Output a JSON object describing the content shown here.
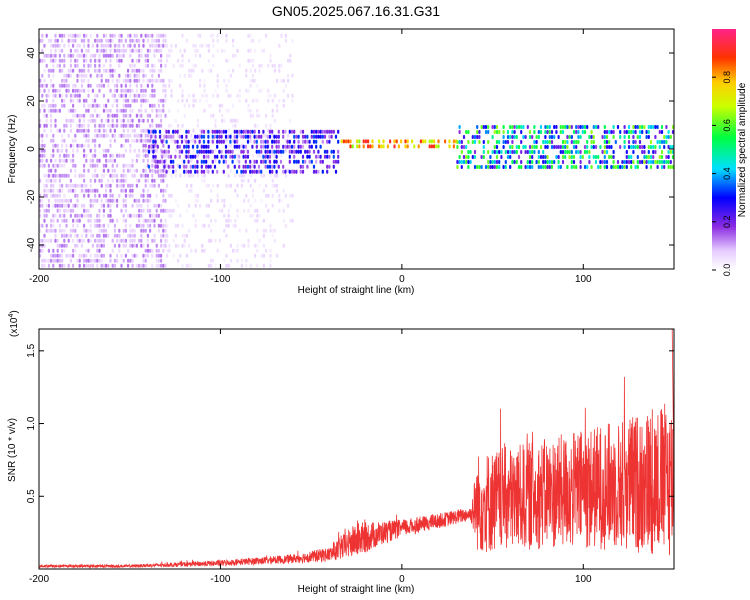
{
  "title": "GN05.2025.067.16.31.G31",
  "chart_data": [
    {
      "type": "heatmap",
      "xlabel": "Height of straight line (km)",
      "ylabel": "Frequency (Hz)",
      "xlim": [
        -200,
        150
      ],
      "ylim": [
        -50,
        50
      ],
      "x_ticks": [
        {
          "v": -200,
          "label": "-200"
        },
        {
          "v": -100,
          "label": "-100"
        },
        {
          "v": 0,
          "label": "0"
        },
        {
          "v": 100,
          "label": "100"
        }
      ],
      "y_ticks": [
        {
          "v": 40,
          "label": "40"
        },
        {
          "v": 20,
          "label": "20"
        },
        {
          "v": 0,
          "label": "0"
        },
        {
          "v": -20,
          "label": "-20"
        },
        {
          "v": -40,
          "label": "-40"
        }
      ],
      "colorbar": {
        "label": "Normalized spectral amplitude",
        "range": [
          0,
          1
        ],
        "ticks": [
          {
            "v": 0.0,
            "label": "0.0"
          },
          {
            "v": 0.2,
            "label": "0.2"
          },
          {
            "v": 0.4,
            "label": "0.4"
          },
          {
            "v": 0.6,
            "label": "0.6"
          },
          {
            "v": 0.8,
            "label": "0.8"
          }
        ]
      },
      "regions": [
        {
          "x": [
            -200,
            -130
          ],
          "f": [
            -50,
            48
          ],
          "amplitude": 0.1,
          "density": "high"
        },
        {
          "x": [
            -130,
            -60
          ],
          "f": [
            -50,
            48
          ],
          "amplitude": 0.05,
          "density": "medium"
        },
        {
          "x": [
            -140,
            -35
          ],
          "f": [
            -10,
            8
          ],
          "amplitude": 0.25,
          "density": "high"
        },
        {
          "x": [
            -35,
            30
          ],
          "f": [
            0,
            4
          ],
          "amplitude": 0.9,
          "density": "high"
        },
        {
          "x": [
            30,
            150
          ],
          "f": [
            -8,
            10
          ],
          "amplitude": 0.55,
          "density": "high"
        }
      ]
    },
    {
      "type": "line",
      "xlabel": "Height of straight line (km)",
      "ylabel": "SNR (10 * v/v)",
      "scale_label": "(x10",
      "scale_exp": "4",
      "xlim": [
        -200,
        150
      ],
      "ylim": [
        0,
        1.65
      ],
      "x_ticks": [
        {
          "v": -200,
          "label": "-200"
        },
        {
          "v": -100,
          "label": "-100"
        },
        {
          "v": 0,
          "label": "0"
        },
        {
          "v": 100,
          "label": "100"
        }
      ],
      "y_ticks": [
        {
          "v": 1.5,
          "label": "1.5"
        },
        {
          "v": 1.0,
          "label": "1.0"
        },
        {
          "v": 0.5,
          "label": "0.5"
        }
      ],
      "series": [
        {
          "color": "#ee3333",
          "envelope": [
            {
              "x": -200,
              "mean": 0.02,
              "amp": 0.01
            },
            {
              "x": -150,
              "mean": 0.02,
              "amp": 0.01
            },
            {
              "x": -100,
              "mean": 0.04,
              "amp": 0.02
            },
            {
              "x": -60,
              "mean": 0.07,
              "amp": 0.03
            },
            {
              "x": -40,
              "mean": 0.1,
              "amp": 0.05
            },
            {
              "x": -25,
              "mean": 0.2,
              "amp": 0.12
            },
            {
              "x": -10,
              "mean": 0.25,
              "amp": 0.08
            },
            {
              "x": 0,
              "mean": 0.28,
              "amp": 0.06
            },
            {
              "x": 20,
              "mean": 0.33,
              "amp": 0.05
            },
            {
              "x": 38,
              "mean": 0.38,
              "amp": 0.05
            },
            {
              "x": 42,
              "mean": 0.45,
              "amp": 0.35
            },
            {
              "x": 80,
              "mean": 0.52,
              "amp": 0.38
            },
            {
              "x": 120,
              "mean": 0.58,
              "amp": 0.45
            },
            {
              "x": 150,
              "mean": 0.62,
              "amp": 0.55
            }
          ],
          "max_point": {
            "x": 149,
            "y": 1.65
          }
        }
      ]
    }
  ]
}
